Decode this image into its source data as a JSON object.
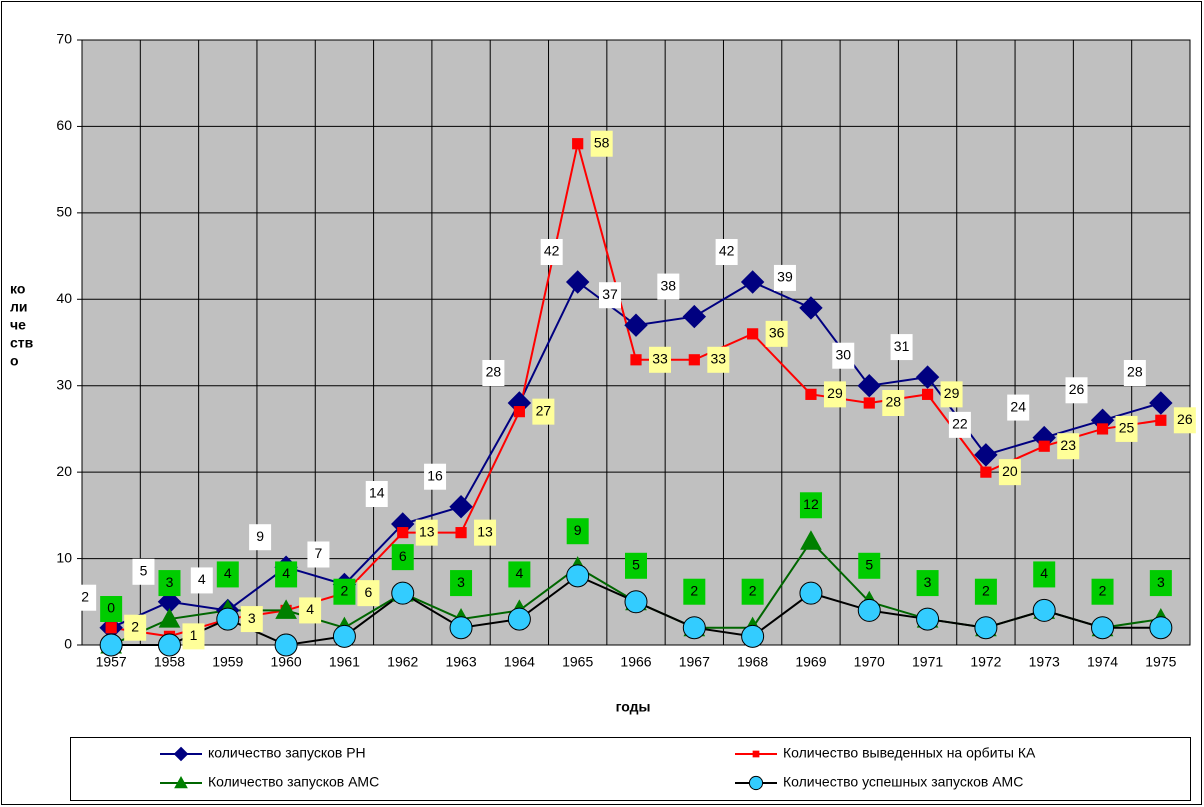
{
  "chart_data": {
    "type": "line",
    "xlabel": "годы",
    "ylabel": [
      "ко",
      "ли",
      "че",
      "ств",
      "о"
    ],
    "categories": [
      "1957",
      "1958",
      "1959",
      "1960",
      "1961",
      "1962",
      "1963",
      "1964",
      "1965",
      "1966",
      "1967",
      "1968",
      "1969",
      "1970",
      "1971",
      "1972",
      "1973",
      "1974",
      "1975"
    ],
    "ylim": [
      0,
      70
    ],
    "yticks": [
      0,
      10,
      20,
      30,
      40,
      50,
      60,
      70
    ],
    "grid": true,
    "plot_background": "#c0c0c0",
    "legend": "bottom",
    "series": [
      {
        "name": "количество запусков РН",
        "color": "#000080",
        "marker": "diamond",
        "marker_color": "#000080",
        "label_color": "#ffffff",
        "values": [
          2,
          5,
          4,
          9,
          7,
          14,
          16,
          28,
          42,
          37,
          38,
          42,
          39,
          30,
          31,
          22,
          24,
          26,
          28
        ]
      },
      {
        "name": "Количество выведенных на орбиты КА",
        "color": "#ff0000",
        "marker": "square",
        "marker_color": "#ff0000",
        "label_color": "#ffff99",
        "values": [
          2,
          1,
          3,
          4,
          6,
          13,
          13,
          27,
          58,
          33,
          33,
          36,
          29,
          28,
          29,
          20,
          23,
          25,
          26
        ]
      },
      {
        "name": "Количество запусков АМС",
        "color": "#006600",
        "marker": "triangle",
        "marker_color": "#008000",
        "label_color": "#00cc00",
        "values": [
          0,
          3,
          4,
          4,
          2,
          6,
          3,
          4,
          9,
          5,
          2,
          2,
          12,
          5,
          3,
          2,
          4,
          2,
          3
        ]
      },
      {
        "name": "Количество успешных запусков АМС",
        "color": "#000000",
        "marker": "circle",
        "marker_color": "#33ccff",
        "values": [
          0,
          0,
          3,
          0,
          1,
          6,
          2,
          3,
          8,
          5,
          2,
          1,
          6,
          4,
          3,
          2,
          4,
          2,
          2
        ]
      }
    ]
  }
}
